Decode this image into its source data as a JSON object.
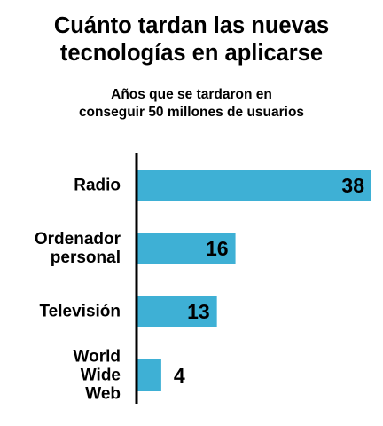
{
  "chart_data": {
    "type": "bar",
    "orientation": "horizontal",
    "title": [
      "Cuánto tardan las nuevas",
      "tecnologías en aplicarse"
    ],
    "subtitle": [
      "Años que se tardaron en",
      "conseguir 50 millones de usuarios"
    ],
    "categories": [
      [
        "Radio"
      ],
      [
        "Ordenador",
        "personal"
      ],
      [
        "Televisión"
      ],
      [
        "World",
        "Wide",
        "Web"
      ]
    ],
    "values": [
      38,
      16,
      13,
      4
    ],
    "xlim": [
      0,
      38
    ],
    "grid": false,
    "legend": "none",
    "bar_color": "#3eb0d5",
    "axis_color": "#000000"
  }
}
